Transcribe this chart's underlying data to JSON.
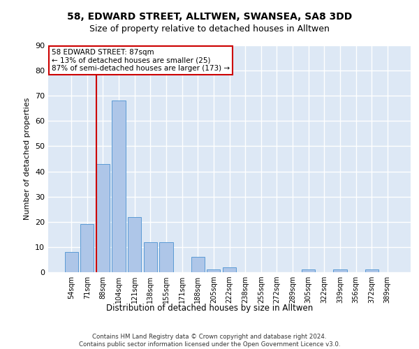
{
  "title1": "58, EDWARD STREET, ALLTWEN, SWANSEA, SA8 3DD",
  "title2": "Size of property relative to detached houses in Alltwen",
  "xlabel": "Distribution of detached houses by size in Alltwen",
  "ylabel": "Number of detached properties",
  "categories": [
    "54sqm",
    "71sqm",
    "88sqm",
    "104sqm",
    "121sqm",
    "138sqm",
    "155sqm",
    "171sqm",
    "188sqm",
    "205sqm",
    "222sqm",
    "238sqm",
    "255sqm",
    "272sqm",
    "289sqm",
    "305sqm",
    "322sqm",
    "339sqm",
    "356sqm",
    "372sqm",
    "389sqm"
  ],
  "values": [
    8,
    19,
    43,
    68,
    22,
    12,
    12,
    0,
    6,
    1,
    2,
    0,
    0,
    0,
    0,
    1,
    0,
    1,
    0,
    1,
    0
  ],
  "bar_color": "#aec6e8",
  "bar_edge_color": "#5b9bd5",
  "background_color": "#dde8f5",
  "grid_color": "#ffffff",
  "annotation_box_text": "58 EDWARD STREET: 87sqm\n← 13% of detached houses are smaller (25)\n87% of semi-detached houses are larger (173) →",
  "annotation_box_color": "#ffffff",
  "annotation_box_edge_color": "#cc0000",
  "vline_color": "#cc0000",
  "ylim": [
    0,
    90
  ],
  "yticks": [
    0,
    10,
    20,
    30,
    40,
    50,
    60,
    70,
    80,
    90
  ],
  "footer": "Contains HM Land Registry data © Crown copyright and database right 2024.\nContains public sector information licensed under the Open Government Licence v3.0.",
  "title_fontsize": 10,
  "subtitle_fontsize": 9,
  "bar_width": 0.85
}
